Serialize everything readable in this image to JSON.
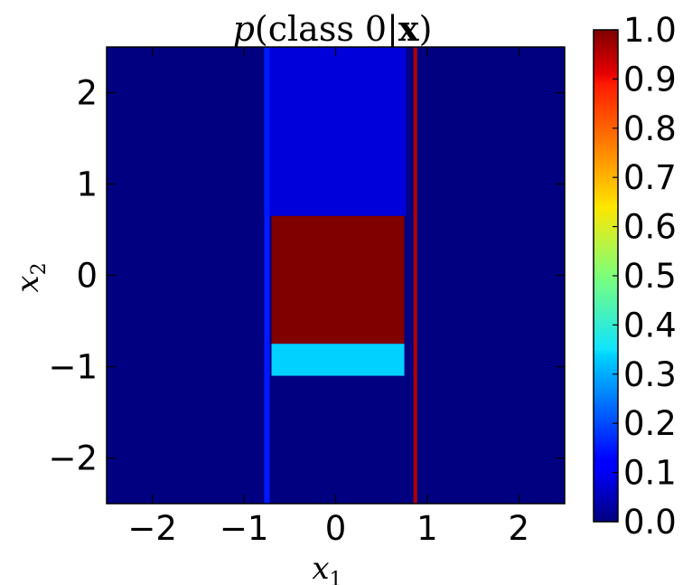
{
  "chart_data": {
    "type": "heatmap",
    "title": "p(class 0|x)",
    "xlabel": "x1",
    "ylabel": "x2",
    "xlim": [
      -2.5,
      2.5
    ],
    "ylim": [
      -2.5,
      2.5
    ],
    "x_ticks": [
      -2,
      -1,
      0,
      1,
      2
    ],
    "y_ticks": [
      -2,
      -1,
      0,
      1,
      2
    ],
    "x_tick_labels": [
      "−2",
      "−1",
      "0",
      "1",
      "2"
    ],
    "y_tick_labels": [
      "−2",
      "−1",
      "0",
      "1",
      "2"
    ],
    "background_value": 0.0,
    "regions": [
      {
        "name": "upper-band",
        "x": [
          -0.77,
          0.77
        ],
        "y": [
          0.65,
          2.5
        ],
        "value": 0.09
      },
      {
        "name": "red-block",
        "x": [
          -0.7,
          0.75
        ],
        "y": [
          -0.75,
          0.65
        ],
        "value": 1.0
      },
      {
        "name": "cyan-block",
        "x": [
          -0.7,
          0.75
        ],
        "y": [
          -1.1,
          -0.75
        ],
        "value": 0.33
      },
      {
        "name": "left-stripe",
        "x": [
          -0.78,
          -0.72
        ],
        "y": [
          -2.5,
          2.5
        ],
        "value": 0.15
      },
      {
        "name": "right-stripe",
        "x": [
          0.85,
          0.89
        ],
        "y": [
          -2.5,
          2.5
        ],
        "value": 0.95
      }
    ],
    "colormap": "jet",
    "colorbar": {
      "range": [
        0.0,
        1.0
      ],
      "ticks": [
        0.0,
        0.1,
        0.2,
        0.3,
        0.4,
        0.5,
        0.6,
        0.7,
        0.8,
        0.9,
        1.0
      ],
      "tick_labels": [
        "0.0",
        "0.1",
        "0.2",
        "0.3",
        "0.4",
        "0.5",
        "0.6",
        "0.7",
        "0.8",
        "0.9",
        "1.0"
      ]
    },
    "grid": false
  }
}
